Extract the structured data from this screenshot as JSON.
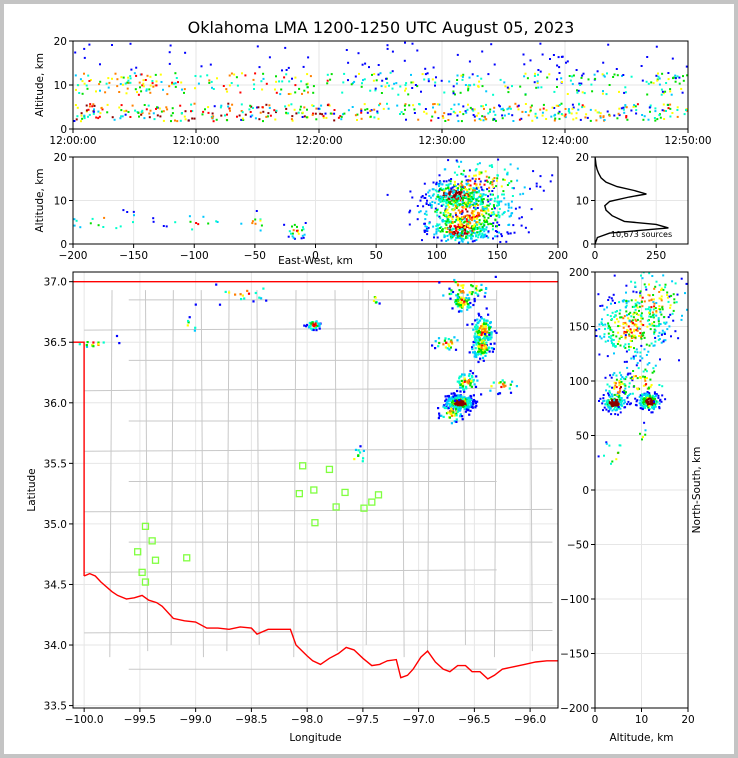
{
  "title": "Oklahoma LMA 1200-1250 UTC August 05, 2023",
  "colors": {
    "border": "#c4c4c4",
    "state_line": "#ff0000",
    "counties": "#c8c8c8",
    "stations": "#80ff40",
    "density_scale": [
      "#0000ff",
      "#00c8ff",
      "#00ffcc",
      "#00e000",
      "#ffff00",
      "#ff8000",
      "#ff0000",
      "#8b0000"
    ]
  },
  "chart_data": [
    {
      "id": "alt-time",
      "type": "heatmap",
      "title": "",
      "xlabel": "",
      "ylabel": "Altitude, km",
      "xlim": [
        0,
        50
      ],
      "ylim": [
        0,
        20
      ],
      "xticks": [
        0,
        10,
        20,
        30,
        40,
        50
      ],
      "xticklabels": [
        "12:00:00",
        "12:10:00",
        "12:20:00",
        "12:30:00",
        "12:40:00",
        "12:50:00"
      ],
      "yticks": [
        0,
        10,
        20
      ],
      "yticklabels": [
        "0",
        "10",
        "20"
      ],
      "grid": true,
      "bands": [
        {
          "t": [
            0,
            50
          ],
          "alt": [
            2,
            6
          ],
          "density": 0.8
        },
        {
          "t": [
            0,
            50
          ],
          "alt": [
            8,
            13
          ],
          "density": 0.6
        },
        {
          "t": [
            0,
            50
          ],
          "alt": [
            13,
            20
          ],
          "density": 0.12
        }
      ]
    },
    {
      "id": "alt-ew",
      "type": "heatmap",
      "xlabel": "East-West, km",
      "ylabel": "Altitude, km",
      "xlim": [
        -200,
        200
      ],
      "ylim": [
        0,
        20
      ],
      "xticks": [
        -200,
        -150,
        -100,
        -50,
        0,
        50,
        100,
        150,
        200
      ],
      "xticklabels": [
        "−200",
        "−150",
        "−100",
        "−50",
        "0",
        "50",
        "100",
        "150",
        "200"
      ],
      "yticks": [
        0,
        10,
        20
      ],
      "yticklabels": [
        "0",
        "10",
        "20"
      ],
      "grid": true,
      "clusters": [
        {
          "x": 115,
          "alt": 11.5,
          "sx": 12,
          "salt": 1.5,
          "n": 260,
          "core": 0.25
        },
        {
          "x": 118,
          "alt": 3.5,
          "sx": 12,
          "salt": 1.5,
          "n": 220,
          "core": 0.2
        },
        {
          "x": 125,
          "alt": 7,
          "sx": 20,
          "salt": 3,
          "n": 420,
          "core": 0
        },
        {
          "x": 135,
          "alt": 14,
          "sx": 20,
          "salt": 3,
          "n": 150,
          "core": 0
        },
        {
          "x": -16,
          "alt": 3.5,
          "sx": 4,
          "salt": 1,
          "n": 25,
          "core": 0
        },
        {
          "x": -170,
          "alt": 5.5,
          "sx": 18,
          "salt": 1,
          "n": 18,
          "core": 0
        },
        {
          "x": -100,
          "alt": 5,
          "sx": 12,
          "salt": 1,
          "n": 12,
          "core": 0
        },
        {
          "x": -50,
          "alt": 5,
          "sx": 6,
          "salt": 1,
          "n": 10,
          "core": 0
        }
      ]
    },
    {
      "id": "histogram",
      "type": "line",
      "annotation": "10,673 sources",
      "xlim": [
        0,
        380
      ],
      "ylim": [
        0,
        20
      ],
      "xticks": [
        0,
        250
      ],
      "xticklabels": [
        "0",
        "250"
      ],
      "yticks": [
        0,
        10,
        20
      ],
      "yticklabels": [
        "0",
        "10",
        "20"
      ],
      "grid": true,
      "x": [
        0,
        10,
        60,
        300,
        250,
        120,
        70,
        45,
        40,
        60,
        140,
        210,
        160,
        90,
        45,
        25,
        15,
        8,
        4,
        2,
        0
      ],
      "y": [
        0,
        1.5,
        2.5,
        3.7,
        4.5,
        5.2,
        6.5,
        7.8,
        8.8,
        9.8,
        10.8,
        11.5,
        12.3,
        13.2,
        14.2,
        15.2,
        16.2,
        17.2,
        18.2,
        19.2,
        20
      ]
    },
    {
      "id": "plan-view",
      "type": "heatmap",
      "xlabel": "Longitude",
      "ylabel": "Latitude",
      "xlim": [
        -100.1,
        -95.75
      ],
      "ylim": [
        33.48,
        37.08
      ],
      "xticks": [
        -100.0,
        -99.5,
        -99.0,
        -98.5,
        -98.0,
        -97.5,
        -97.0,
        -96.5,
        -96.0
      ],
      "xticklabels": [
        "−100.0",
        "−99.5",
        "−99.0",
        "−98.5",
        "−98.0",
        "−97.5",
        "−97.0",
        "−96.5",
        "−96.0"
      ],
      "yticks": [
        33.5,
        34.0,
        34.5,
        35.0,
        35.5,
        36.0,
        36.5,
        37.0
      ],
      "yticklabels": [
        "33.5",
        "34.0",
        "34.5",
        "35.0",
        "35.5",
        "36.0",
        "36.5",
        "37.0"
      ],
      "grid": true,
      "clusters": [
        {
          "lon": -96.64,
          "lat": 36.01,
          "slon": 0.06,
          "slat": 0.03,
          "n": 330,
          "core": 0.4
        },
        {
          "lon": -96.43,
          "lat": 36.6,
          "slon": 0.05,
          "slat": 0.06,
          "n": 130,
          "core": 0
        },
        {
          "lon": -96.44,
          "lat": 36.47,
          "slon": 0.05,
          "slat": 0.05,
          "n": 90,
          "core": 0
        },
        {
          "lon": -96.62,
          "lat": 36.84,
          "slon": 0.05,
          "slat": 0.04,
          "n": 70,
          "core": 0
        },
        {
          "lon": -96.58,
          "lat": 36.18,
          "slon": 0.05,
          "slat": 0.04,
          "n": 60,
          "core": 0
        },
        {
          "lon": -96.72,
          "lat": 35.92,
          "slon": 0.05,
          "slat": 0.04,
          "n": 45,
          "core": 0
        },
        {
          "lon": -96.28,
          "lat": 36.15,
          "slon": 0.08,
          "slat": 0.03,
          "n": 20,
          "core": 0
        },
        {
          "lon": -96.75,
          "lat": 36.5,
          "slon": 0.06,
          "slat": 0.03,
          "n": 25,
          "core": 0
        },
        {
          "lon": -96.6,
          "lat": 36.95,
          "slon": 0.12,
          "slat": 0.05,
          "n": 40,
          "core": 0
        },
        {
          "lon": -97.95,
          "lat": 36.65,
          "slon": 0.03,
          "slat": 0.02,
          "n": 40,
          "core": 0.1
        },
        {
          "lon": -99.92,
          "lat": 36.5,
          "slon": 0.08,
          "slat": 0.02,
          "n": 15,
          "core": 0
        },
        {
          "lon": -98.6,
          "lat": 36.92,
          "slon": 0.15,
          "slat": 0.04,
          "n": 18,
          "core": 0
        },
        {
          "lon": -97.4,
          "lat": 36.86,
          "slon": 0.02,
          "slat": 0.02,
          "n": 6,
          "core": 0
        },
        {
          "lon": -97.55,
          "lat": 35.55,
          "slon": 0.04,
          "slat": 0.04,
          "n": 10,
          "core": 0
        },
        {
          "lon": -99.05,
          "lat": 36.65,
          "slon": 0.03,
          "slat": 0.03,
          "n": 6,
          "core": 0
        }
      ],
      "stations": [
        {
          "lon": -98.04,
          "lat": 35.48
        },
        {
          "lon": -97.8,
          "lat": 35.45
        },
        {
          "lon": -97.94,
          "lat": 35.28
        },
        {
          "lon": -98.07,
          "lat": 35.25
        },
        {
          "lon": -97.66,
          "lat": 35.26
        },
        {
          "lon": -97.36,
          "lat": 35.24
        },
        {
          "lon": -97.42,
          "lat": 35.18
        },
        {
          "lon": -97.74,
          "lat": 35.14
        },
        {
          "lon": -97.49,
          "lat": 35.13
        },
        {
          "lon": -97.93,
          "lat": 35.01
        },
        {
          "lon": -99.45,
          "lat": 34.98
        },
        {
          "lon": -99.39,
          "lat": 34.86
        },
        {
          "lon": -99.52,
          "lat": 34.77
        },
        {
          "lon": -99.36,
          "lat": 34.7
        },
        {
          "lon": -99.08,
          "lat": 34.72
        },
        {
          "lon": -99.48,
          "lat": 34.6
        },
        {
          "lon": -99.45,
          "lat": 34.52
        }
      ],
      "state_boundary": [
        [
          -100.1,
          37.0
        ],
        [
          -95.75,
          37.0
        ]
      ],
      "state_boundary_west": [
        [
          -100.1,
          36.5
        ],
        [
          -100.0,
          36.5
        ],
        [
          -100.0,
          34.57
        ]
      ],
      "red_river": [
        [
          -100.0,
          34.57
        ],
        [
          -99.95,
          34.59
        ],
        [
          -99.9,
          34.57
        ],
        [
          -99.85,
          34.52
        ],
        [
          -99.75,
          34.44
        ],
        [
          -99.7,
          34.41
        ],
        [
          -99.62,
          34.38
        ],
        [
          -99.55,
          34.39
        ],
        [
          -99.48,
          34.41
        ],
        [
          -99.42,
          34.37
        ],
        [
          -99.35,
          34.35
        ],
        [
          -99.3,
          34.32
        ],
        [
          -99.2,
          34.22
        ],
        [
          -99.1,
          34.2
        ],
        [
          -99.0,
          34.19
        ],
        [
          -98.9,
          34.14
        ],
        [
          -98.8,
          34.14
        ],
        [
          -98.7,
          34.13
        ],
        [
          -98.6,
          34.15
        ],
        [
          -98.5,
          34.14
        ],
        [
          -98.45,
          34.09
        ],
        [
          -98.35,
          34.13
        ],
        [
          -98.25,
          34.13
        ],
        [
          -98.15,
          34.13
        ],
        [
          -98.1,
          34.0
        ],
        [
          -98.0,
          33.91
        ],
        [
          -97.95,
          33.87
        ],
        [
          -97.88,
          33.84
        ],
        [
          -97.8,
          33.89
        ],
        [
          -97.72,
          33.93
        ],
        [
          -97.65,
          33.98
        ],
        [
          -97.58,
          33.96
        ],
        [
          -97.5,
          33.89
        ],
        [
          -97.42,
          33.83
        ],
        [
          -97.35,
          33.84
        ],
        [
          -97.28,
          33.87
        ],
        [
          -97.2,
          33.88
        ],
        [
          -97.16,
          33.73
        ],
        [
          -97.1,
          33.75
        ],
        [
          -97.05,
          33.8
        ],
        [
          -96.98,
          33.9
        ],
        [
          -96.92,
          33.95
        ],
        [
          -96.85,
          33.86
        ],
        [
          -96.78,
          33.8
        ],
        [
          -96.72,
          33.78
        ],
        [
          -96.65,
          33.83
        ],
        [
          -96.58,
          33.83
        ],
        [
          -96.52,
          33.78
        ],
        [
          -96.45,
          33.78
        ],
        [
          -96.38,
          33.72
        ],
        [
          -96.32,
          33.75
        ],
        [
          -96.25,
          33.8
        ],
        [
          -96.15,
          33.82
        ],
        [
          -96.05,
          33.84
        ],
        [
          -95.95,
          33.86
        ],
        [
          -95.85,
          33.87
        ],
        [
          -95.75,
          33.87
        ]
      ]
    },
    {
      "id": "ns-alt",
      "type": "heatmap",
      "xlabel": "Altitude, km",
      "ylabel": "North-South, km",
      "xlim": [
        0,
        20
      ],
      "ylim": [
        -200,
        200
      ],
      "xticks": [
        0,
        10,
        20
      ],
      "xticklabels": [
        "0",
        "10",
        "20"
      ],
      "yticks": [
        -200,
        -150,
        -100,
        -50,
        0,
        50,
        100,
        150,
        200
      ],
      "yticklabels": [
        "−200",
        "−150",
        "−100",
        "−50",
        "0",
        "50",
        "100",
        "150",
        "200"
      ],
      "grid": true,
      "clusters": [
        {
          "alt": 4,
          "ns": 81,
          "salt": 1.2,
          "sns": 4,
          "n": 160,
          "core": 0.35
        },
        {
          "alt": 11.5,
          "ns": 82,
          "salt": 1.2,
          "sns": 4,
          "n": 160,
          "core": 0.35
        },
        {
          "alt": 8,
          "ns": 150,
          "salt": 4,
          "sns": 15,
          "n": 280,
          "core": 0
        },
        {
          "alt": 12,
          "ns": 175,
          "salt": 4,
          "sns": 15,
          "n": 120,
          "core": 0
        },
        {
          "alt": 5,
          "ns": 95,
          "salt": 1.5,
          "sns": 8,
          "n": 60,
          "core": 0
        },
        {
          "alt": 10,
          "ns": 100,
          "salt": 2.5,
          "sns": 10,
          "n": 60,
          "core": 0
        },
        {
          "alt": 4,
          "ns": 35,
          "salt": 1.5,
          "sns": 6,
          "n": 12,
          "core": 0
        },
        {
          "alt": 10,
          "ns": 52,
          "salt": 0.5,
          "sns": 4,
          "n": 6,
          "core": 0
        }
      ]
    }
  ]
}
